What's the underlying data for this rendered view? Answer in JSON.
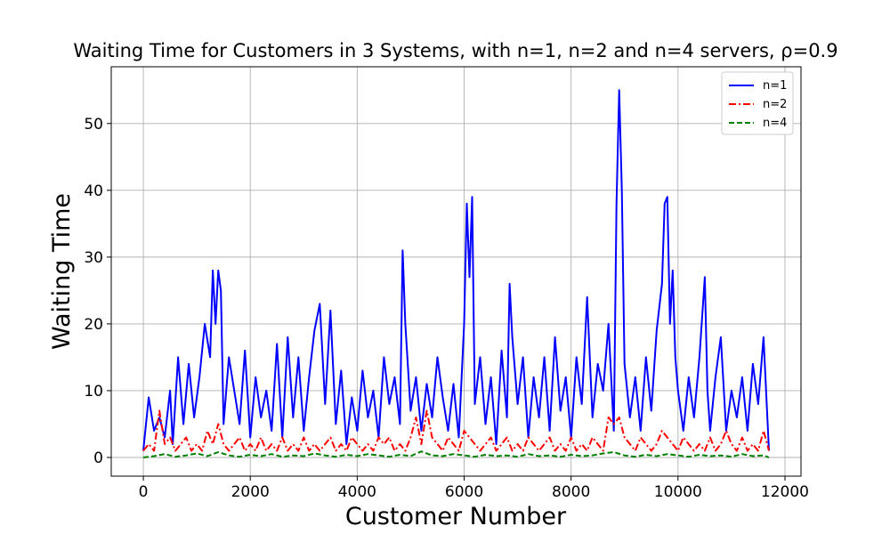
{
  "chart_data": {
    "type": "line",
    "title": "Waiting Time for Customers in 3 Systems, with n=1, n=2 and n=4 servers, ρ=0.9",
    "xlabel": "Customer Number",
    "ylabel": "Waiting Time",
    "xlim": [
      -600,
      12300
    ],
    "ylim": [
      -2.8,
      58.5
    ],
    "xticks": [
      0,
      2000,
      4000,
      6000,
      8000,
      10000,
      12000
    ],
    "yticks": [
      0,
      10,
      20,
      30,
      40,
      50
    ],
    "grid": true,
    "legend_position": "top-right",
    "series": [
      {
        "name": "n=1",
        "color": "#0000ff",
        "dash": "solid",
        "x": [
          0,
          100,
          200,
          300,
          400,
          500,
          550,
          650,
          750,
          850,
          950,
          1050,
          1150,
          1250,
          1300,
          1350,
          1400,
          1450,
          1500,
          1600,
          1700,
          1800,
          1900,
          2000,
          2100,
          2200,
          2300,
          2400,
          2500,
          2600,
          2700,
          2800,
          2900,
          3000,
          3100,
          3200,
          3300,
          3400,
          3500,
          3600,
          3700,
          3800,
          3900,
          4000,
          4100,
          4200,
          4300,
          4400,
          4500,
          4600,
          4700,
          4800,
          4850,
          4900,
          5000,
          5100,
          5200,
          5300,
          5400,
          5500,
          5600,
          5700,
          5800,
          5900,
          6000,
          6050,
          6100,
          6150,
          6200,
          6300,
          6400,
          6500,
          6600,
          6700,
          6800,
          6850,
          6900,
          7000,
          7100,
          7200,
          7300,
          7400,
          7500,
          7600,
          7700,
          7800,
          7900,
          8000,
          8100,
          8200,
          8300,
          8400,
          8500,
          8600,
          8700,
          8800,
          8850,
          8900,
          8950,
          9000,
          9100,
          9200,
          9300,
          9400,
          9500,
          9600,
          9700,
          9750,
          9800,
          9850,
          9900,
          9950,
          10000,
          10100,
          10200,
          10300,
          10400,
          10500,
          10550,
          10600,
          10700,
          10800,
          10900,
          11000,
          11100,
          11200,
          11300,
          11400,
          11500,
          11600,
          11700
        ],
        "y": [
          1,
          9,
          4,
          6,
          3,
          10,
          2,
          15,
          5,
          14,
          6,
          12,
          20,
          15,
          28,
          20,
          28,
          25,
          5,
          15,
          10,
          5,
          16,
          3,
          12,
          6,
          10,
          4,
          17,
          3,
          18,
          6,
          15,
          4,
          12,
          19,
          23,
          8,
          22,
          5,
          13,
          2,
          9,
          4,
          13,
          6,
          10,
          3,
          15,
          8,
          12,
          5,
          31,
          20,
          7,
          12,
          4,
          11,
          6,
          15,
          9,
          4,
          11,
          3,
          20,
          38,
          27,
          39,
          8,
          15,
          5,
          12,
          2,
          16,
          6,
          26,
          18,
          8,
          15,
          3,
          12,
          6,
          15,
          4,
          18,
          7,
          12,
          3,
          15,
          8,
          24,
          6,
          14,
          10,
          20,
          4,
          38,
          55,
          40,
          14,
          6,
          12,
          4,
          15,
          7,
          19,
          26,
          38,
          39,
          20,
          28,
          15,
          10,
          4,
          12,
          6,
          15,
          27,
          10,
          4,
          12,
          18,
          4,
          10,
          6,
          12,
          4,
          14,
          8,
          18,
          1
        ]
      },
      {
        "name": "n=2",
        "color": "#ff0000",
        "dash": "dashdot",
        "x": [
          0,
          100,
          200,
          300,
          400,
          500,
          600,
          700,
          800,
          900,
          1000,
          1100,
          1200,
          1300,
          1400,
          1500,
          1600,
          1700,
          1800,
          1900,
          2000,
          2100,
          2200,
          2300,
          2400,
          2500,
          2600,
          2700,
          2800,
          2900,
          3000,
          3100,
          3200,
          3300,
          3400,
          3500,
          3600,
          3700,
          3800,
          3900,
          4000,
          4100,
          4200,
          4300,
          4400,
          4500,
          4600,
          4700,
          4800,
          4900,
          5000,
          5100,
          5200,
          5300,
          5400,
          5500,
          5600,
          5700,
          5800,
          5900,
          6000,
          6100,
          6200,
          6300,
          6400,
          6500,
          6600,
          6700,
          6800,
          6900,
          7000,
          7100,
          7200,
          7300,
          7400,
          7500,
          7600,
          7700,
          7800,
          7900,
          8000,
          8100,
          8200,
          8300,
          8400,
          8500,
          8600,
          8700,
          8800,
          8900,
          9000,
          9100,
          9200,
          9300,
          9400,
          9500,
          9600,
          9700,
          9800,
          9900,
          10000,
          10100,
          10200,
          10300,
          10400,
          10500,
          10600,
          10700,
          10800,
          10900,
          11000,
          11100,
          11200,
          11300,
          11400,
          11500,
          11600,
          11700
        ],
        "y": [
          1,
          2,
          1,
          7,
          2,
          3,
          1,
          2,
          3,
          1,
          2,
          1,
          4,
          2,
          5,
          2,
          1,
          2,
          3,
          1,
          2,
          1,
          3,
          1,
          2,
          1,
          3,
          1,
          2,
          1,
          3,
          1,
          2,
          1,
          2,
          3,
          1,
          2,
          1,
          3,
          2,
          1,
          2,
          1,
          3,
          2,
          3,
          1,
          2,
          1,
          3,
          6,
          2,
          7,
          3,
          2,
          1,
          3,
          2,
          1,
          4,
          3,
          2,
          1,
          2,
          3,
          1,
          2,
          3,
          1,
          2,
          1,
          3,
          2,
          1,
          2,
          3,
          1,
          2,
          1,
          3,
          1,
          2,
          1,
          3,
          2,
          1,
          6,
          5,
          6,
          3,
          2,
          1,
          3,
          2,
          1,
          2,
          4,
          3,
          2,
          1,
          3,
          2,
          1,
          2,
          1,
          3,
          1,
          2,
          4,
          2,
          1,
          3,
          1,
          2,
          1,
          4,
          1
        ]
      },
      {
        "name": "n=4",
        "color": "#008000",
        "dash": "dashed",
        "x": [
          0,
          200,
          400,
          600,
          800,
          1000,
          1200,
          1400,
          1600,
          1800,
          2000,
          2200,
          2400,
          2600,
          2800,
          3000,
          3200,
          3400,
          3600,
          3800,
          4000,
          4200,
          4400,
          4600,
          4800,
          5000,
          5200,
          5400,
          5600,
          5800,
          6000,
          6200,
          6400,
          6600,
          6800,
          7000,
          7200,
          7400,
          7600,
          7800,
          8000,
          8200,
          8400,
          8600,
          8800,
          9000,
          9200,
          9400,
          9600,
          9800,
          10000,
          10200,
          10400,
          10600,
          10800,
          11000,
          11200,
          11400,
          11600,
          11700
        ],
        "y": [
          0,
          0.2,
          0.5,
          0.1,
          0.3,
          0.6,
          0.2,
          0.8,
          0.3,
          0.1,
          0.4,
          0.2,
          0.5,
          0.1,
          0.3,
          0.2,
          0.6,
          0.3,
          0.1,
          0.4,
          0.2,
          0.5,
          0.3,
          0.1,
          0.4,
          0.2,
          0.9,
          0.3,
          0.2,
          0.5,
          0.3,
          0.1,
          0.4,
          0.2,
          0.3,
          0.1,
          0.5,
          0.2,
          0.3,
          0.1,
          0.4,
          0.2,
          0.3,
          0.6,
          0.8,
          0.3,
          0.1,
          0.4,
          0.2,
          0.5,
          0.3,
          0.1,
          0.4,
          0.2,
          0.3,
          0.1,
          0.5,
          0.2,
          0.3,
          0
        ]
      }
    ]
  }
}
